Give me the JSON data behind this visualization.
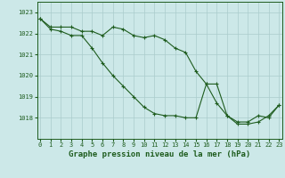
{
  "title": "Graphe pression niveau de la mer (hPa)",
  "background_color": "#cce8e8",
  "grid_color": "#aacccc",
  "line_color": "#1e5c1e",
  "marker_color": "#1e5c1e",
  "x_values": [
    0,
    1,
    2,
    3,
    4,
    5,
    6,
    7,
    8,
    9,
    10,
    11,
    12,
    13,
    14,
    15,
    16,
    17,
    18,
    19,
    20,
    21,
    22,
    23
  ],
  "line1": [
    1022.7,
    1022.3,
    1022.3,
    1022.3,
    1022.1,
    1022.1,
    1021.9,
    1022.3,
    1022.2,
    1021.9,
    1021.8,
    1021.9,
    1021.7,
    1021.3,
    1021.1,
    1020.2,
    1019.6,
    1018.7,
    1018.1,
    1017.7,
    1017.7,
    1017.8,
    1018.1,
    1018.6
  ],
  "line2": [
    1022.7,
    1022.2,
    1022.1,
    1021.9,
    1021.9,
    1021.3,
    1020.6,
    1020.0,
    1019.5,
    1019.0,
    1018.5,
    1018.2,
    1018.1,
    1018.1,
    1018.0,
    1018.0,
    1019.6,
    1019.6,
    1018.1,
    1017.8,
    1017.8,
    1018.1,
    1018.0,
    1018.6
  ],
  "ylim_min": 1017.0,
  "ylim_max": 1023.5,
  "yticks": [
    1018,
    1019,
    1020,
    1021,
    1022,
    1023
  ],
  "xlim_min": -0.3,
  "xlim_max": 23.3,
  "marker_size": 2.5,
  "line_width": 0.8,
  "title_fontsize": 6.5,
  "tick_fontsize": 5.0
}
